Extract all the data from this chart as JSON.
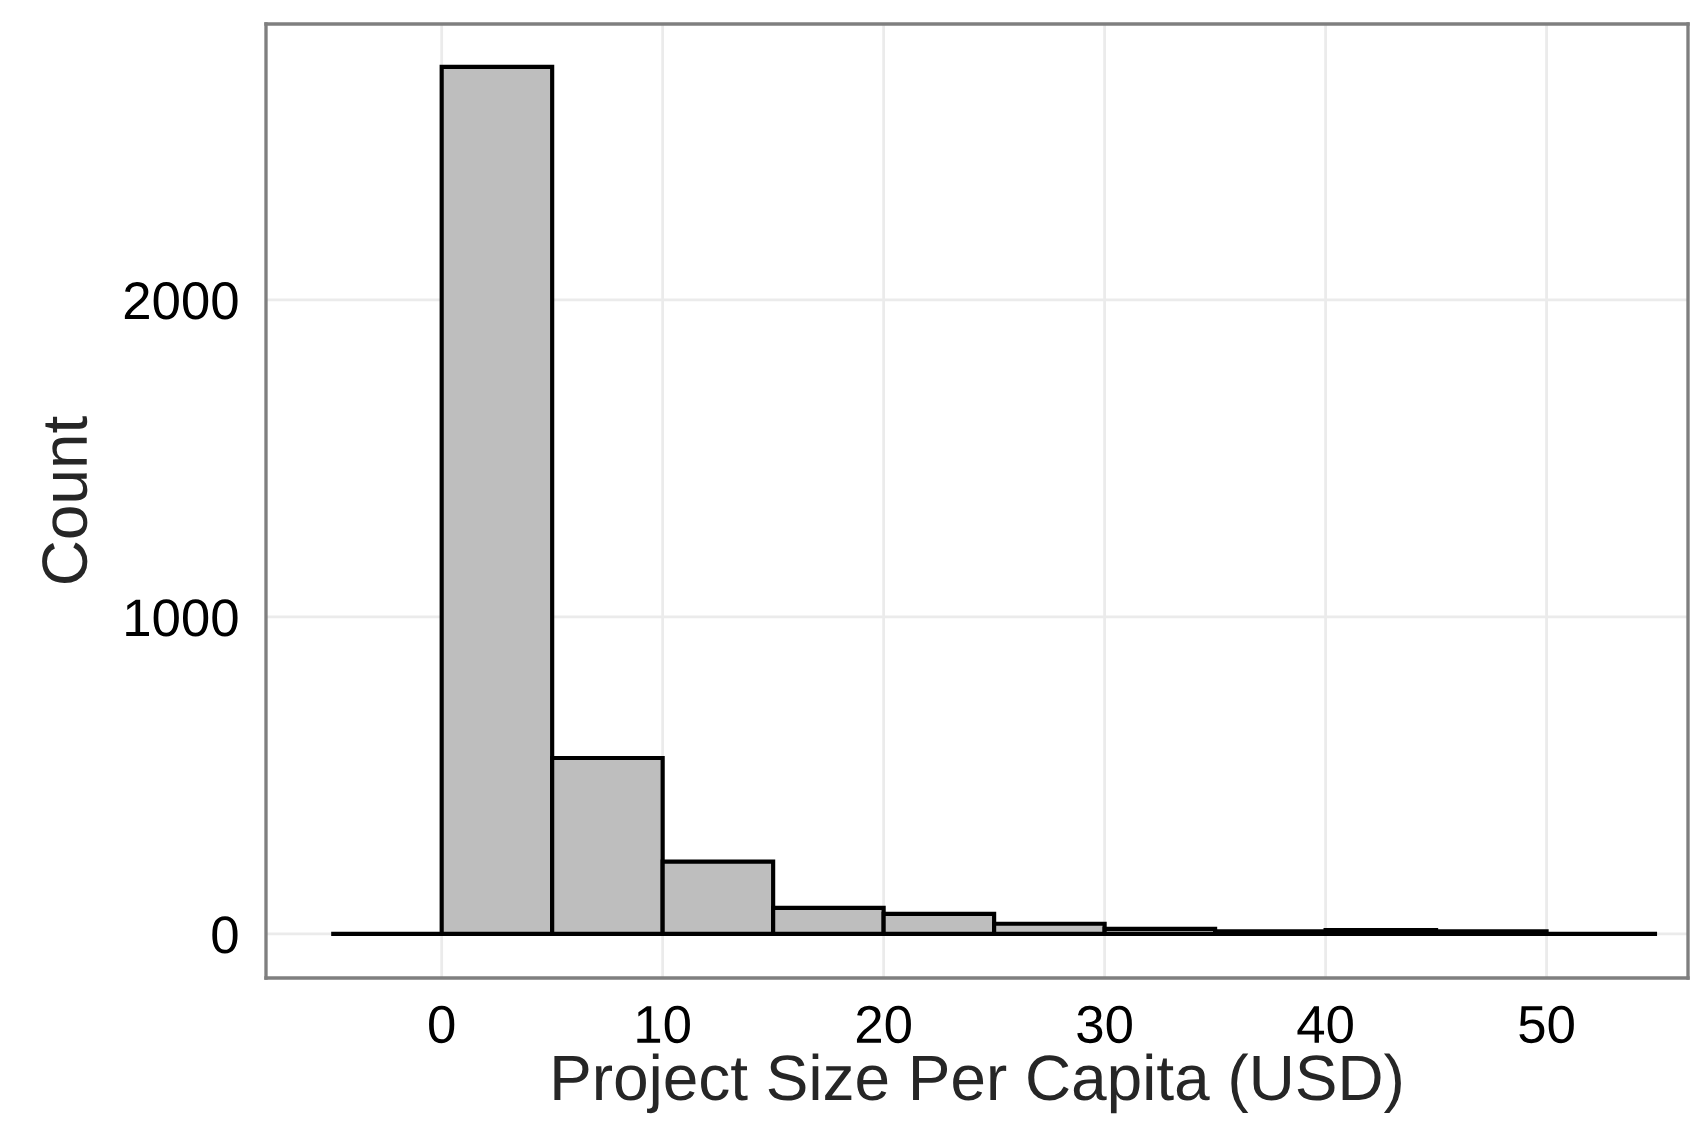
{
  "chart_data": {
    "type": "histogram",
    "xlabel": "Project Size Per Capita (USD)",
    "ylabel": "Count",
    "bins": [
      -5,
      0,
      5,
      10,
      15,
      20,
      25,
      30,
      35,
      40,
      45,
      50,
      55
    ],
    "values": [
      0,
      2735,
      555,
      228,
      82,
      63,
      32,
      16,
      8,
      12,
      8,
      0
    ],
    "colors": [
      "#000000",
      "#bebebe",
      "#bebebe",
      "#bebebe",
      "#bebebe",
      "#bebebe",
      "#bebebe",
      "#bebebe",
      "#bebebe",
      "#bebebe",
      "#bebebe",
      "#000000"
    ],
    "xlim": [
      -7.95,
      56.4
    ],
    "ylim": [
      -139,
      2870
    ],
    "xticks": [
      0,
      10,
      20,
      30,
      40,
      50
    ],
    "yticks": [
      0,
      1000,
      2000
    ],
    "grid": true
  }
}
